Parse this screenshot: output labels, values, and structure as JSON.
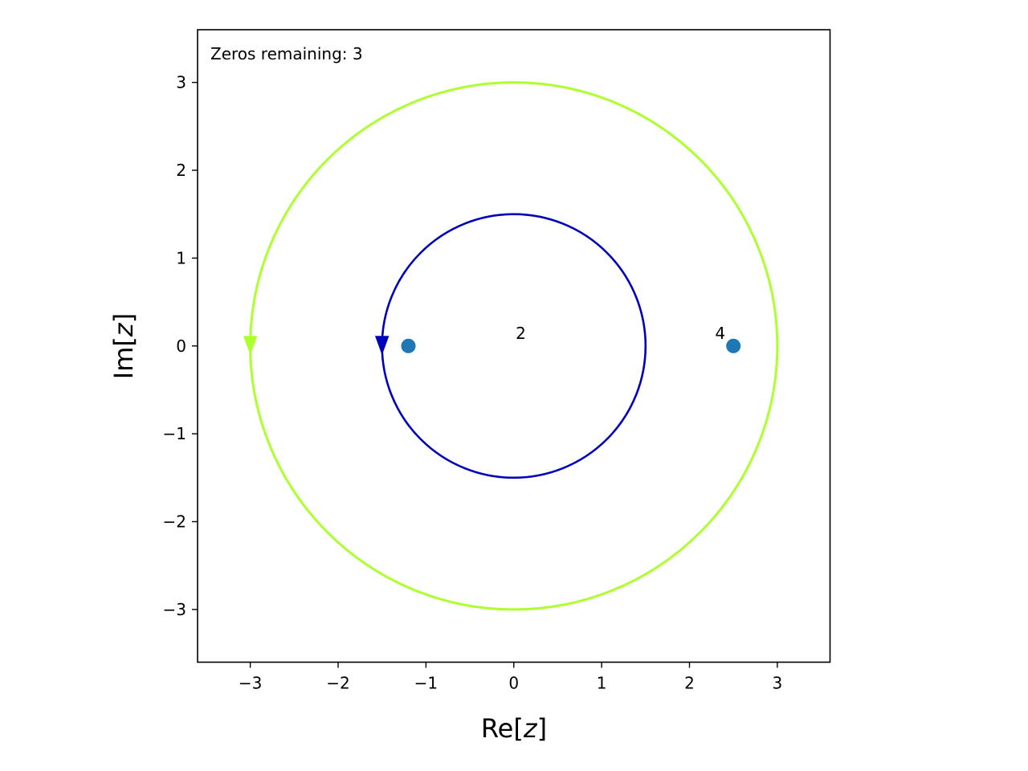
{
  "chart_data": {
    "type": "scatter",
    "status_text": "Zeros remaining: 3",
    "xlabel_main": "Re[",
    "xlabel_var": "z",
    "xlabel_end": "]",
    "ylabel_main": "Im[",
    "ylabel_var": "z",
    "ylabel_end": "]",
    "xlim": [
      -3.6,
      3.6
    ],
    "ylim": [
      -3.6,
      3.6
    ],
    "xticks": [
      -3,
      -2,
      -1,
      0,
      1,
      2,
      3
    ],
    "yticks": [
      -3,
      -2,
      -1,
      0,
      1,
      2,
      3
    ],
    "xtick_labels": [
      "−3",
      "−2",
      "−1",
      "0",
      "1",
      "2",
      "3"
    ],
    "ytick_labels": [
      "−3",
      "−2",
      "−1",
      "0",
      "1",
      "2",
      "3"
    ],
    "grid": false,
    "contours": [
      {
        "center": [
          0,
          0
        ],
        "radius": 3.0,
        "color": "#adff2f",
        "direction": "counterclockwise"
      },
      {
        "center": [
          0,
          0
        ],
        "radius": 1.5,
        "color": "#0000b8",
        "direction": "counterclockwise"
      }
    ],
    "zeros": {
      "color": "#1f77b4",
      "points": [
        {
          "x": -1.2,
          "y": 0
        },
        {
          "x": 2.5,
          "y": 0
        }
      ]
    },
    "annotations": [
      {
        "text": "2",
        "x": 0.08,
        "y": 0.08
      },
      {
        "text": "4",
        "x": 2.35,
        "y": 0.08
      }
    ]
  }
}
